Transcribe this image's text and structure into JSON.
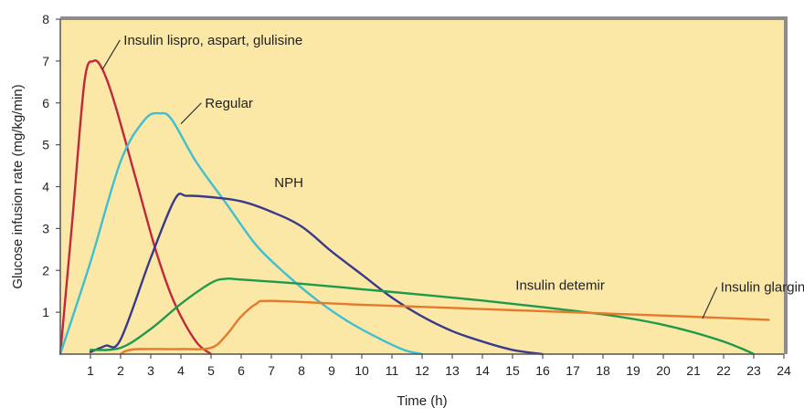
{
  "chart_data": {
    "type": "line",
    "title": "",
    "xlabel": "Time (h)",
    "ylabel": "Glucose infusion rate (mg/kg/min)",
    "xlim": [
      0,
      24
    ],
    "ylim": [
      0,
      8
    ],
    "x_ticks": [
      1,
      2,
      3,
      4,
      5,
      6,
      7,
      8,
      9,
      10,
      11,
      12,
      13,
      14,
      15,
      16,
      17,
      18,
      19,
      20,
      21,
      22,
      23,
      24
    ],
    "y_ticks": [
      1,
      2,
      3,
      4,
      5,
      6,
      7,
      8
    ],
    "grid": false,
    "background_color": "#fbe7a6",
    "frame_color": "#8c8c8c",
    "series": [
      {
        "name": "Insulin lispro, aspart, glulisine",
        "color": "#c0283c",
        "points": [
          [
            0,
            0
          ],
          [
            0.4,
            3.2
          ],
          [
            0.8,
            6.5
          ],
          [
            1.1,
            7.0
          ],
          [
            1.4,
            6.8
          ],
          [
            1.8,
            6.0
          ],
          [
            2.5,
            4.2
          ],
          [
            3.2,
            2.4
          ],
          [
            3.8,
            1.2
          ],
          [
            4.5,
            0.3
          ],
          [
            5,
            0
          ]
        ]
      },
      {
        "name": "Regular",
        "color": "#3fbfcf",
        "points": [
          [
            0,
            0
          ],
          [
            1,
            2.2
          ],
          [
            2,
            4.6
          ],
          [
            2.8,
            5.6
          ],
          [
            3.3,
            5.75
          ],
          [
            3.7,
            5.6
          ],
          [
            4.5,
            4.6
          ],
          [
            5.5,
            3.6
          ],
          [
            6.5,
            2.6
          ],
          [
            7.5,
            1.9
          ],
          [
            8.5,
            1.3
          ],
          [
            9.5,
            0.8
          ],
          [
            10.5,
            0.4
          ],
          [
            11.4,
            0.1
          ],
          [
            12,
            0
          ]
        ]
      },
      {
        "name": "NPH",
        "color": "#3a3a8c",
        "points": [
          [
            1,
            0.05
          ],
          [
            1.5,
            0.2
          ],
          [
            2,
            0.35
          ],
          [
            3,
            2.3
          ],
          [
            3.8,
            3.7
          ],
          [
            4.2,
            3.78
          ],
          [
            5,
            3.75
          ],
          [
            6,
            3.65
          ],
          [
            7,
            3.4
          ],
          [
            8,
            3.05
          ],
          [
            9,
            2.45
          ],
          [
            10,
            1.9
          ],
          [
            11,
            1.35
          ],
          [
            12,
            0.9
          ],
          [
            13,
            0.55
          ],
          [
            14,
            0.3
          ],
          [
            15,
            0.1
          ],
          [
            16,
            0
          ]
        ]
      },
      {
        "name": "Insulin detemir",
        "color": "#1f9a4a",
        "points": [
          [
            1,
            0.1
          ],
          [
            2,
            0.15
          ],
          [
            3,
            0.6
          ],
          [
            4,
            1.2
          ],
          [
            5,
            1.7
          ],
          [
            5.5,
            1.8
          ],
          [
            6,
            1.78
          ],
          [
            8,
            1.68
          ],
          [
            10,
            1.55
          ],
          [
            12,
            1.42
          ],
          [
            14,
            1.28
          ],
          [
            16,
            1.12
          ],
          [
            18,
            0.95
          ],
          [
            19,
            0.84
          ],
          [
            20,
            0.7
          ],
          [
            21,
            0.52
          ],
          [
            22,
            0.3
          ],
          [
            22.7,
            0.1
          ],
          [
            23,
            0
          ]
        ]
      },
      {
        "name": "Insulin glargine",
        "color": "#e57a2c",
        "points": [
          [
            2,
            0
          ],
          [
            2.2,
            0.08
          ],
          [
            2.6,
            0.12
          ],
          [
            4,
            0.12
          ],
          [
            5,
            0.15
          ],
          [
            5.5,
            0.45
          ],
          [
            6,
            0.9
          ],
          [
            6.5,
            1.2
          ],
          [
            7,
            1.27
          ],
          [
            10,
            1.18
          ],
          [
            15,
            1.05
          ],
          [
            20,
            0.92
          ],
          [
            23.5,
            0.82
          ]
        ]
      }
    ],
    "annotations": [
      {
        "text": "Insulin lispro, aspart, glulisine",
        "series": "Insulin lispro, aspart, glulisine",
        "point": [
          1.4,
          6.8
        ],
        "anchor": [
          2.1,
          7.5
        ]
      },
      {
        "text": "Regular",
        "series": "Regular",
        "point": [
          4.0,
          5.5
        ],
        "anchor": [
          4.8,
          6.0
        ]
      },
      {
        "text": "NPH",
        "series": "NPH",
        "point": null,
        "anchor": [
          7.1,
          4.1
        ]
      },
      {
        "text": "Insulin detemir",
        "series": "Insulin detemir",
        "point": null,
        "anchor": [
          15.1,
          1.65
        ]
      },
      {
        "text": "Insulin glargine",
        "series": "Insulin glargine",
        "point": [
          21.3,
          0.85
        ],
        "anchor": [
          21.9,
          1.6
        ]
      }
    ]
  }
}
